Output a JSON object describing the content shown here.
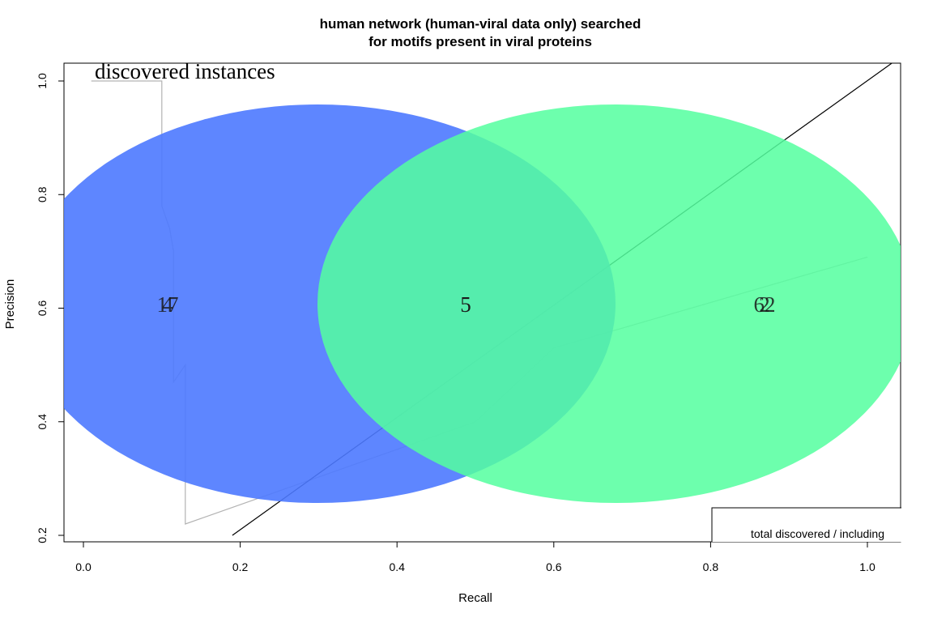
{
  "chart_data": {
    "type": "line",
    "title": [
      "human network (human-viral data only) searched",
      "for motifs present in viral proteins"
    ],
    "xlabel": "Recall",
    "ylabel": "Precision",
    "xlim": [
      0.0,
      1.0
    ],
    "ylim": [
      0.2,
      1.0
    ],
    "xticks": [
      "0.0",
      "0.2",
      "0.4",
      "0.6",
      "0.8",
      "1.0"
    ],
    "yticks": [
      "0.2",
      "0.4",
      "0.6",
      "0.8",
      "1.0"
    ],
    "grid": false,
    "series": [
      {
        "color": "#b3b3b3",
        "x": [
          0.01,
          0.1,
          0.1,
          0.11,
          0.115,
          0.115,
          0.13,
          0.13,
          0.5,
          0.6,
          1.0
        ],
        "y": [
          1.0,
          1.0,
          0.78,
          0.74,
          0.7,
          0.47,
          0.5,
          0.22,
          0.4,
          0.53,
          0.69
        ]
      },
      {
        "color": "#000000",
        "x": [
          0.19,
          1.04
        ],
        "y": [
          0.2,
          1.04
        ]
      }
    ],
    "overlay_text": "discovered instances",
    "legend": {
      "position": "bottom-right",
      "text": "total discovered / including"
    },
    "venn": {
      "left": {
        "color": "#4d79ff",
        "values": [
          "17",
          "4"
        ]
      },
      "overlap": {
        "value": "5"
      },
      "right": {
        "color": "#54ff9f",
        "values": [
          "62",
          "2"
        ]
      }
    }
  }
}
